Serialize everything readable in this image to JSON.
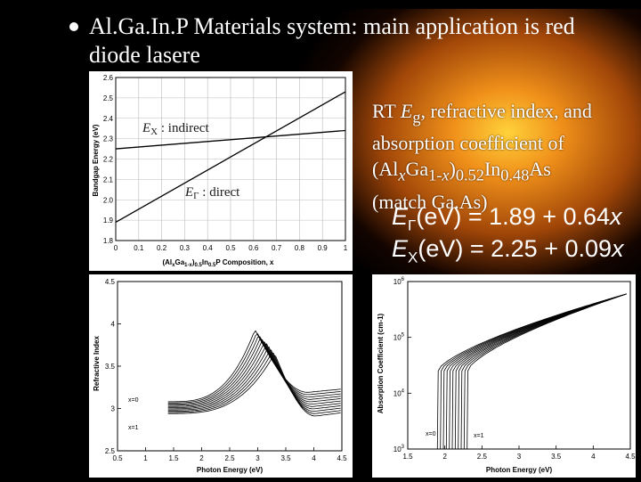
{
  "slide": {
    "title_line1": "Al.Ga.In.P Materials system: main application is red",
    "title_line2": "diode lasere",
    "desc_lines": [
      "RT Eg, refractive index, and",
      "absorption coefficient of",
      "(AlxGa1-x)0.52In0.48As",
      "(match Ga.As)"
    ],
    "formula_gamma": "EΓ(eV) = 1.89 + 0.64x",
    "formula_x": "EX(eV) = 2.25 + 0.09x"
  },
  "chart_data": [
    {
      "type": "line",
      "title": "",
      "xlabel": "(AlxGa1-x)0.5In0.5P Composition, x",
      "ylabel": "Bandgap Energy (eV)",
      "xlim": [
        0,
        1
      ],
      "ylim": [
        1.8,
        2.6
      ],
      "xticks": [
        "0",
        "0.1",
        "0.2",
        "0.3",
        "0.4",
        "0.5",
        "0.6",
        "0.7",
        "0.8",
        "0.9",
        "1"
      ],
      "yticks": [
        "1.8",
        "1.9",
        "2.0",
        "2.1",
        "2.2",
        "2.3",
        "2.4",
        "2.5",
        "2.6"
      ],
      "grid": true,
      "annotations": [
        "EX : indirect",
        "EΓ : direct"
      ],
      "series": [
        {
          "name": "EX : indirect",
          "x": [
            0,
            1
          ],
          "y": [
            2.25,
            2.34
          ]
        },
        {
          "name": "EΓ : direct",
          "x": [
            0,
            1
          ],
          "y": [
            1.89,
            2.53
          ]
        }
      ]
    },
    {
      "type": "line",
      "title": "",
      "xlabel": "Photon Energy (eV)",
      "ylabel": "Refractive Index",
      "xlim": [
        0.5,
        4.5
      ],
      "ylim": [
        2.5,
        4.5
      ],
      "xticks": [
        "0.5",
        "1",
        "1.5",
        "2",
        "2.5",
        "3",
        "3.5",
        "4",
        "4.5"
      ],
      "yticks": [
        "2.5",
        "3",
        "3.5",
        "4",
        "4.5"
      ],
      "grid": false,
      "annotations": [
        "x=0",
        "x=1"
      ],
      "curve_count": 11,
      "series": [
        {
          "composition": 0,
          "peak_x": 2.95,
          "peak_y": 3.93,
          "start_y": 3.08
        },
        {
          "composition": 1,
          "peak_x": 3.3,
          "peak_y": 3.65,
          "start_y": 2.94
        }
      ]
    },
    {
      "type": "line",
      "title": "",
      "xlabel": "Photon Energy (eV)",
      "ylabel": "Absorption Coefficient (cm-1)",
      "xlim": [
        1.5,
        4.5
      ],
      "ylim": [
        1000,
        1000000
      ],
      "y_scale": "log",
      "xticks": [
        "1.5",
        "2",
        "2.5",
        "3",
        "3.5",
        "4",
        "4.5"
      ],
      "yticks": [
        "10^3",
        "10^4",
        "10^5",
        "10^6"
      ],
      "grid": false,
      "annotations": [
        "x=0",
        "x=1"
      ],
      "curve_count": 11,
      "series": [
        {
          "composition": 0,
          "edge_x": 1.9
        },
        {
          "composition": 1,
          "edge_x": 2.3
        }
      ]
    }
  ]
}
